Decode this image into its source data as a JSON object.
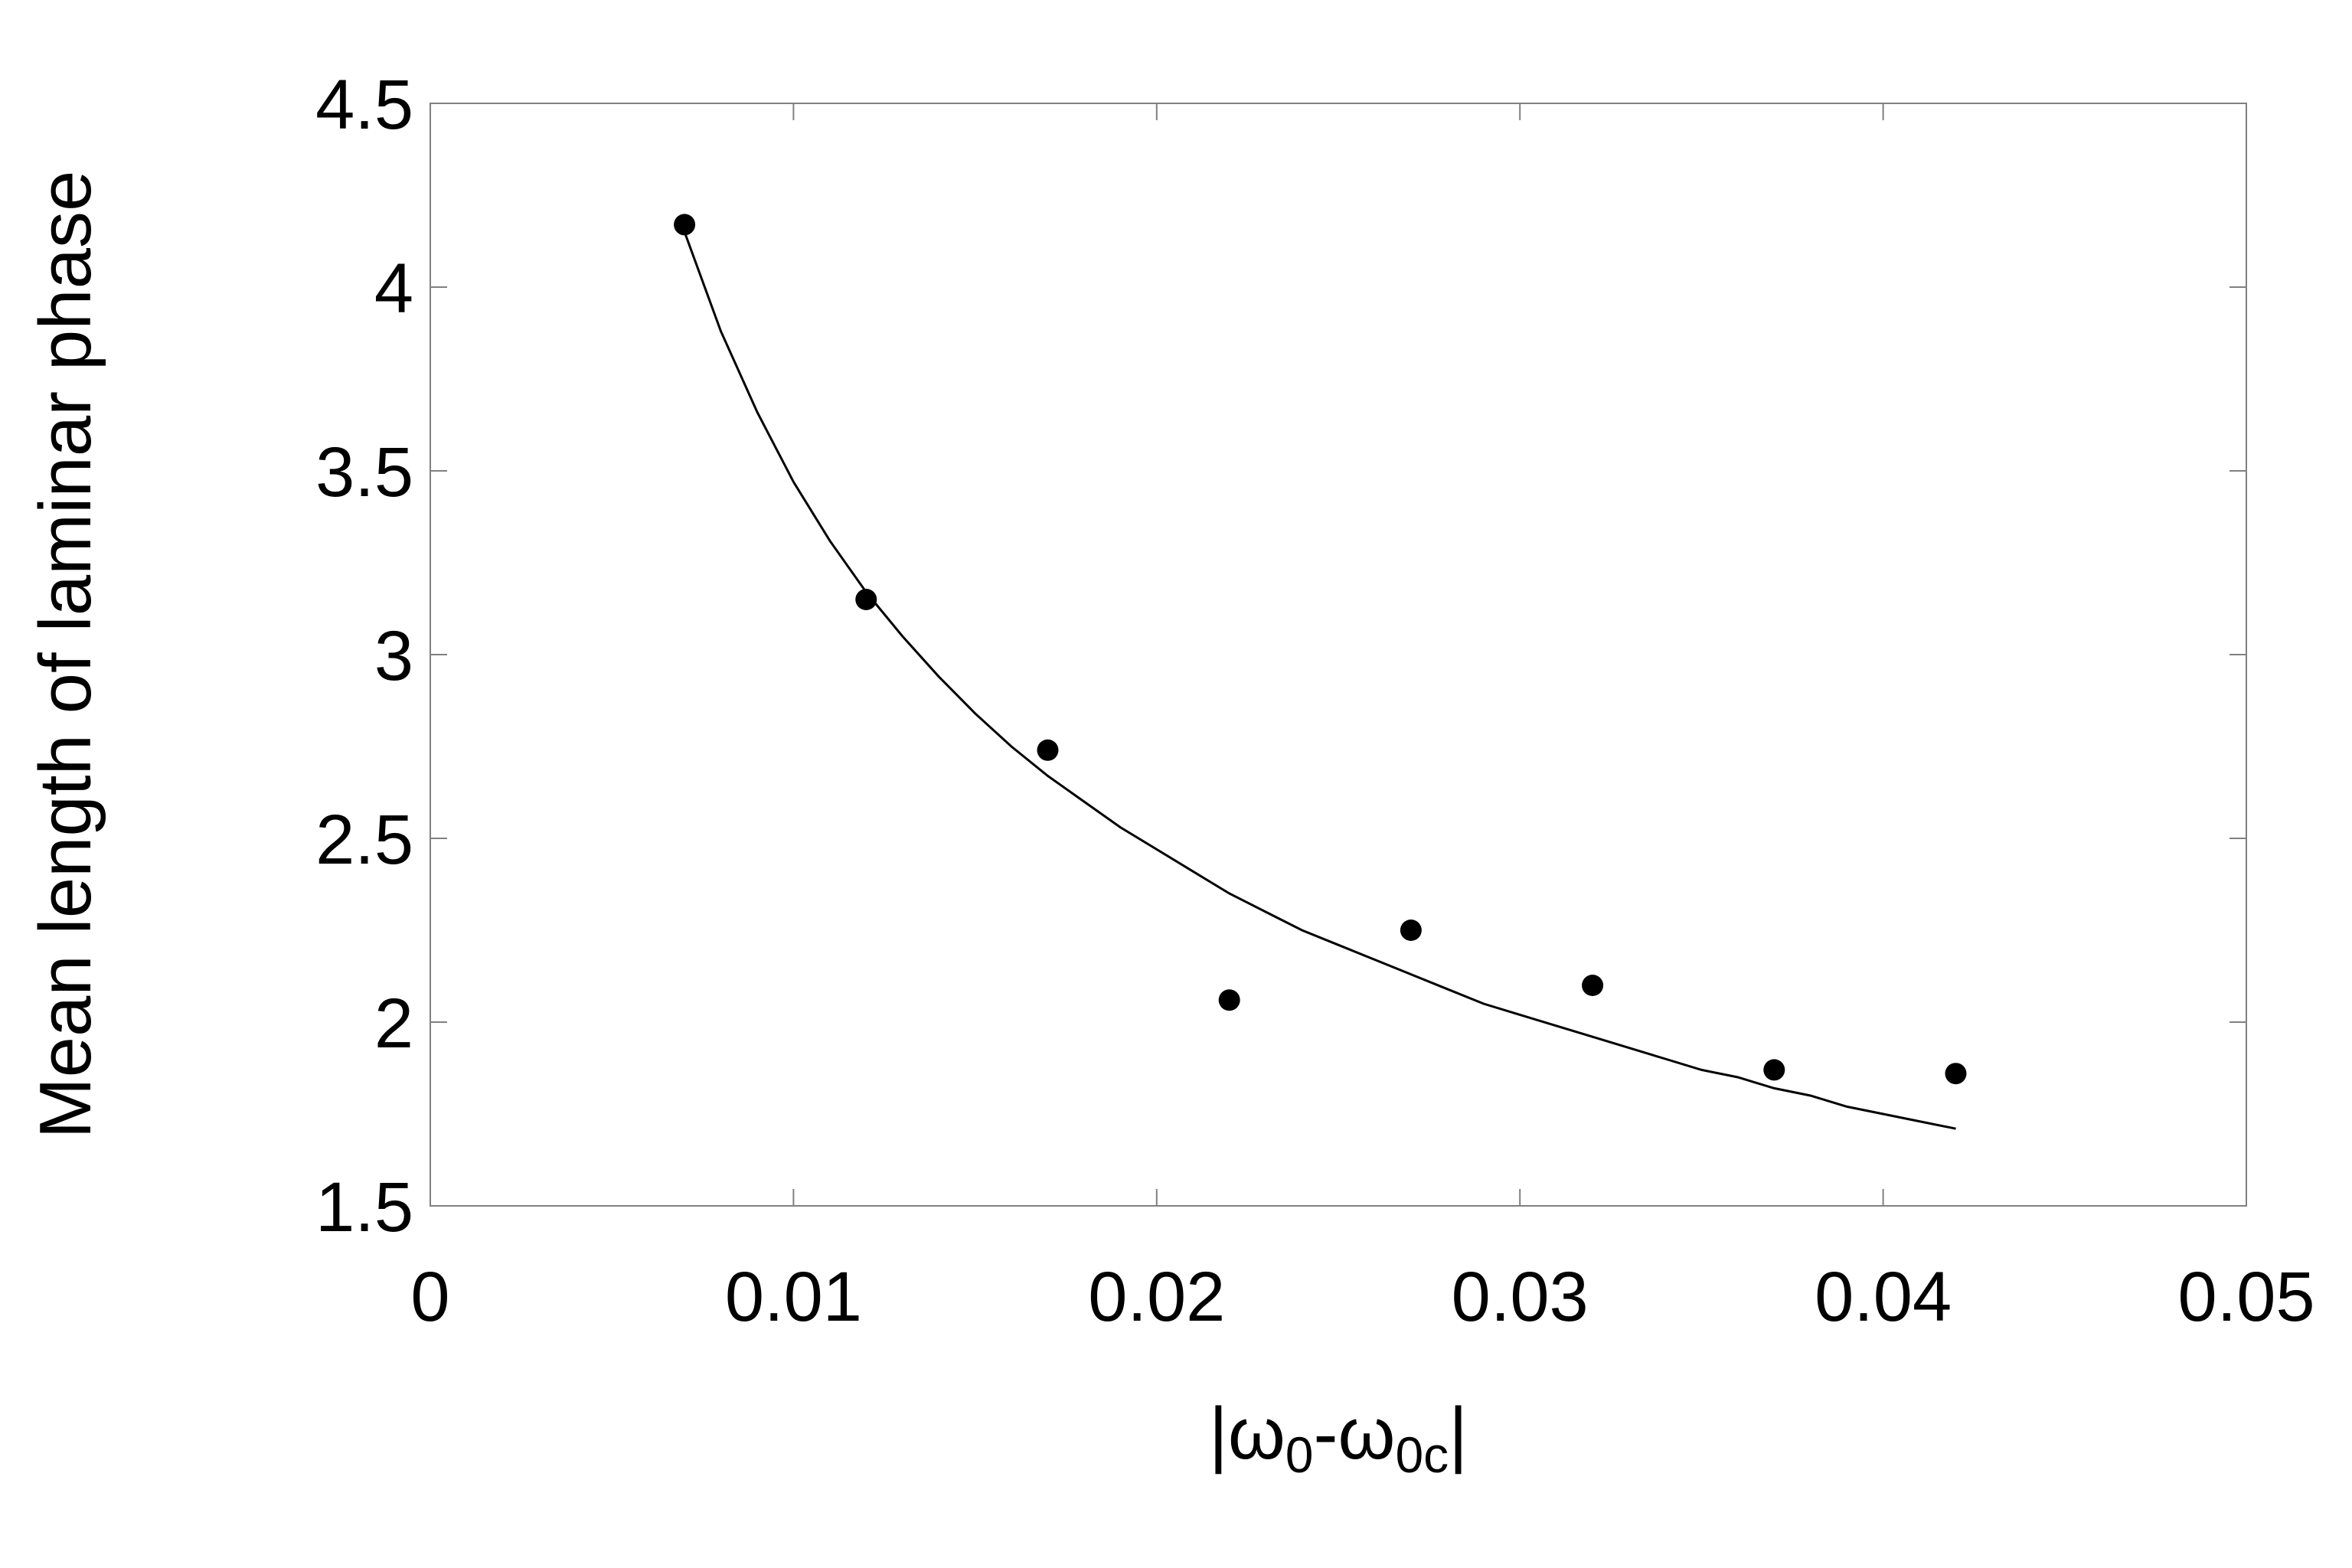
{
  "chart_data": {
    "type": "scatter",
    "title": "",
    "xlabel": {
      "parts": [
        {
          "text": "|ω",
          "sub": false
        },
        {
          "text": "0",
          "sub": true
        },
        {
          "text": "-ω",
          "sub": false
        },
        {
          "text": "0c",
          "sub": true
        },
        {
          "text": "|",
          "sub": false
        }
      ],
      "full_text": "|ω0-ω0c|"
    },
    "ylabel": "Mean length of laminar phase",
    "xlim": [
      0,
      0.05
    ],
    "ylim": [
      1.5,
      4.5
    ],
    "x_ticks": [
      0,
      0.01,
      0.02,
      0.03,
      0.04,
      0.05
    ],
    "x_tick_labels": [
      "0",
      "0.01",
      "0.02",
      "0.03",
      "0.04",
      "0.05"
    ],
    "y_ticks": [
      1.5,
      2,
      2.5,
      3,
      3.5,
      4,
      4.5
    ],
    "y_tick_labels": [
      "1.5",
      "2",
      "2.5",
      "3",
      "3.5",
      "4",
      "4.5"
    ],
    "grid": false,
    "legend": "none",
    "colors": {
      "points": "#000000",
      "fit_line": "#000000",
      "frame": "#808080"
    },
    "series": [
      {
        "kind": "points",
        "x": [
          0.007,
          0.012,
          0.017,
          0.022,
          0.027,
          0.032,
          0.037,
          0.042
        ],
        "y": [
          4.17,
          3.15,
          2.74,
          2.06,
          2.25,
          2.1,
          1.87,
          1.86
        ]
      },
      {
        "kind": "fit_line",
        "x": [
          0.007,
          0.008,
          0.009,
          0.01,
          0.011,
          0.012,
          0.013,
          0.014,
          0.015,
          0.016,
          0.017,
          0.018,
          0.019,
          0.02,
          0.021,
          0.022,
          0.023,
          0.024,
          0.025,
          0.026,
          0.027,
          0.028,
          0.029,
          0.03,
          0.031,
          0.032,
          0.033,
          0.034,
          0.035,
          0.036,
          0.037,
          0.038,
          0.039,
          0.04,
          0.041,
          0.042
        ],
        "y": [
          4.15,
          3.88,
          3.66,
          3.47,
          3.31,
          3.17,
          3.05,
          2.94,
          2.84,
          2.75,
          2.67,
          2.6,
          2.53,
          2.47,
          2.41,
          2.35,
          2.3,
          2.25,
          2.21,
          2.17,
          2.13,
          2.09,
          2.05,
          2.02,
          1.99,
          1.96,
          1.93,
          1.9,
          1.87,
          1.85,
          1.82,
          1.8,
          1.77,
          1.75,
          1.73,
          1.71
        ]
      }
    ]
  }
}
